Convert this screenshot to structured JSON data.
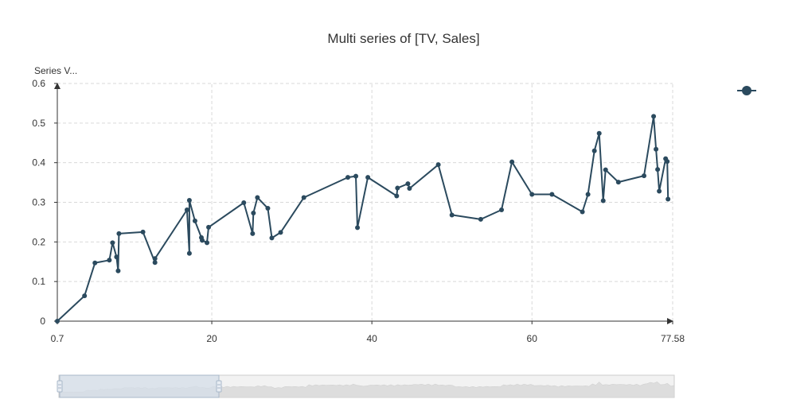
{
  "chart_data": {
    "type": "line",
    "title": "Multi series of [TV, Sales]",
    "ylabel": "Series V...",
    "xlim": [
      0.7,
      77.58
    ],
    "ylim": [
      0,
      0.6
    ],
    "x_ticks": [
      "0.7",
      "20",
      "40",
      "60",
      "77.58"
    ],
    "x_tick_values": [
      0.7,
      20,
      40,
      60,
      77.58
    ],
    "y_ticks": [
      "0",
      "0.1",
      "0.2",
      "0.3",
      "0.4",
      "0.5",
      "0.6"
    ],
    "y_tick_values": [
      0,
      0.1,
      0.2,
      0.3,
      0.4,
      0.5,
      0.6
    ],
    "grid": true,
    "legend": "top-right",
    "colors": {
      "series": "#2b4a5e",
      "grid": "#d9d9d9",
      "axis": "#333333",
      "zoom_fill": "#d4dde8",
      "zoom_track": "#f2f2f2"
    },
    "series": [
      {
        "x": [
          0.7,
          4.1,
          5.4,
          7.2,
          7.6,
          8.1,
          8.3,
          8.4,
          11.4,
          12.9,
          12.9,
          16.9,
          17.2,
          17.2,
          17.9,
          18.7,
          18.8,
          19.4,
          19.6,
          24.0,
          25.1,
          25.2,
          25.7,
          27.0,
          27.5,
          28.6,
          31.5,
          37.0,
          38.0,
          38.2,
          39.5,
          43.1,
          43.2,
          44.5,
          44.7,
          48.3,
          50.0,
          53.6,
          56.2,
          57.5,
          60.0,
          62.5,
          66.3,
          67.0,
          67.8,
          68.4,
          68.9,
          69.2,
          70.8,
          74.0,
          75.2,
          75.5,
          75.7,
          75.9,
          76.7,
          76.9,
          77.0
        ],
        "y": [
          0,
          0.064,
          0.147,
          0.154,
          0.198,
          0.162,
          0.127,
          0.221,
          0.225,
          0.148,
          0.158,
          0.281,
          0.171,
          0.305,
          0.253,
          0.211,
          0.204,
          0.198,
          0.237,
          0.299,
          0.221,
          0.273,
          0.312,
          0.285,
          0.21,
          0.224,
          0.312,
          0.363,
          0.366,
          0.236,
          0.363,
          0.316,
          0.336,
          0.347,
          0.335,
          0.395,
          0.268,
          0.257,
          0.281,
          0.402,
          0.32,
          0.32,
          0.276,
          0.32,
          0.43,
          0.474,
          0.304,
          0.382,
          0.351,
          0.367,
          0.517,
          0.434,
          0.383,
          0.328,
          0.41,
          0.403,
          0.308
        ]
      }
    ]
  }
}
